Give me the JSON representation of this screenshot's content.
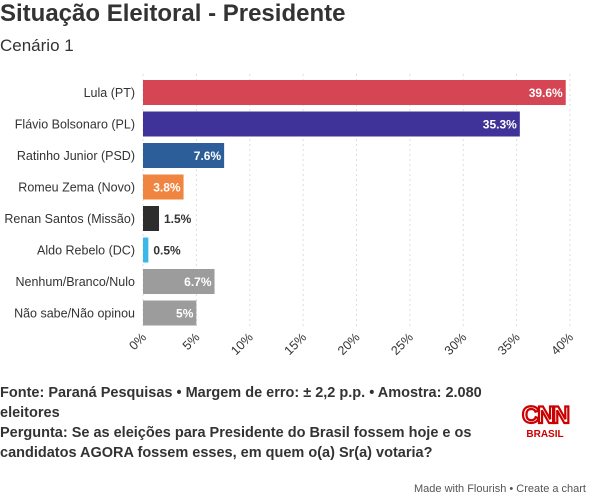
{
  "header": {
    "title": "Situação Eleitoral - Presidente",
    "subtitle": "Cenário 1"
  },
  "chart_data": {
    "type": "bar",
    "orientation": "horizontal",
    "categories": [
      "Lula (PT)",
      "Flávio Bolsonaro (PL)",
      "Ratinho Junior (PSD)",
      "Romeu Zema (Novo)",
      "Renan Santos (Missão)",
      "Aldo Rebelo (DC)",
      "Nenhum/Branco/Nulo",
      "Não sabe/Não opinou"
    ],
    "values": [
      39.6,
      35.3,
      7.6,
      3.8,
      1.5,
      0.5,
      6.7,
      5
    ],
    "value_labels": [
      "39.6%",
      "35.3%",
      "7.6%",
      "3.8%",
      "1.5%",
      "0.5%",
      "6.7%",
      "5%"
    ],
    "colors": [
      "#d64553",
      "#3f3399",
      "#2c5e99",
      "#f08542",
      "#2d2d2d",
      "#3bb7e8",
      "#9c9c9c",
      "#9c9c9c"
    ],
    "xlim": [
      0,
      40
    ],
    "x_ticks": [
      0,
      5,
      10,
      15,
      20,
      25,
      30,
      35,
      40
    ],
    "x_tick_labels": [
      "0%",
      "5%",
      "10%",
      "15%",
      "20%",
      "25%",
      "30%",
      "35%",
      "40%"
    ],
    "grid": true
  },
  "footer": {
    "source": "Fonte: Paraná Pesquisas • Margem de erro: ± 2,2 p.p. • Amostra: 2.080 eleitores",
    "question": "Pergunta: Se as eleições para Presidente do Brasil fossem hoje e os candidatos AGORA fossem esses, em quem o(a) Sr(a) votaria?"
  },
  "logo": {
    "brand": "CNN",
    "sub": "BRASIL",
    "color": "#cc0000"
  },
  "credit": "Made with Flourish • Create a chart"
}
